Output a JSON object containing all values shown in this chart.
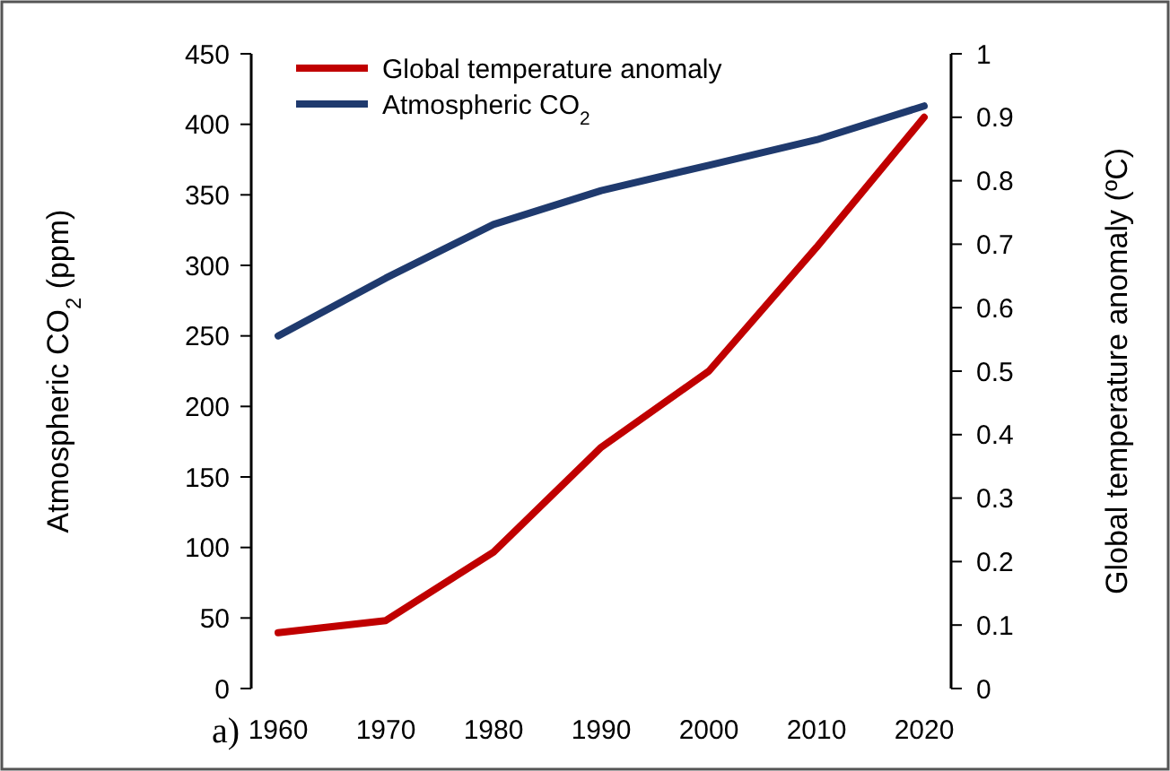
{
  "chart_data": {
    "type": "line",
    "x": [
      1960,
      1970,
      1980,
      1990,
      2000,
      2010,
      2020
    ],
    "series": [
      {
        "name": "Global temperature anomaly",
        "color": "#c00000",
        "axis": "y2",
        "values": [
          0.088,
          0.107,
          0.215,
          0.38,
          0.5,
          0.695,
          0.9
        ]
      },
      {
        "name": "Atmospheric CO$_{2}$",
        "color": "#1f3a6e",
        "values": [
          250,
          291,
          329,
          353,
          371,
          389,
          413
        ]
      }
    ],
    "xlim": [
      1957.5,
      2022.5
    ],
    "xticks": [
      1960,
      1970,
      1980,
      1990,
      2000,
      2010,
      2020
    ],
    "ylim": [
      0,
      450
    ],
    "yticks": [
      0,
      50,
      100,
      150,
      200,
      250,
      300,
      350,
      400,
      450
    ],
    "y2lim": [
      0,
      1
    ],
    "y2ticks": [
      0,
      0.1,
      0.2,
      0.3,
      0.4,
      0.5,
      0.6,
      0.7,
      0.8,
      0.9,
      1
    ],
    "ylabel": "Atmospheric CO$_{2}$ (ppm)",
    "y2label": "Global temperature anomaly (ºC)",
    "annotations": [
      "a)"
    ],
    "legend": "top left",
    "grid": false,
    "marker": "none",
    "line_style": "solid"
  }
}
